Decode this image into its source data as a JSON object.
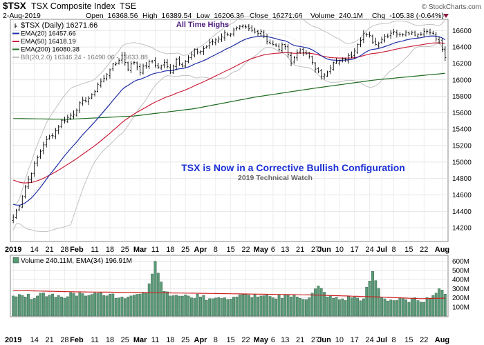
{
  "header": {
    "symbol": "$TSX",
    "name": "TSX Composite Index",
    "exchange": "TSE",
    "brand": "© StockCharts.com",
    "date": "2-Aug-2019",
    "quote": {
      "open_label": "Open",
      "open": "16368.56",
      "high_label": "High",
      "high": "16389.54",
      "low_label": "Low",
      "low": "16206.36",
      "close_label": "Close",
      "close": "16271.66",
      "volume_label": "Volume",
      "volume": "240.1M",
      "chg_label": "Chg",
      "chg": "-105.38 (-0.64%)"
    }
  },
  "colors": {
    "price": "#000000",
    "ema20": "#1f2ea6",
    "ema50": "#cc1f3a",
    "ema200": "#1e6b1e",
    "bb": "#c0c0c0",
    "volume_bar": "#5a9a78",
    "volume_ema": "#cc1f1f",
    "annotation": "#1a2fd6",
    "ath": "#4b1a7a"
  },
  "legend": [
    {
      "key": "price",
      "label": "$TSX (Daily) 16271.66",
      "style": "price"
    },
    {
      "key": "ema20",
      "label": "EMA(20) 16457.66",
      "style": "line"
    },
    {
      "key": "ema50",
      "label": "EMA(50) 16418.19",
      "style": "line"
    },
    {
      "key": "ema200",
      "label": "EMA(200) 16080.38",
      "style": "line"
    },
    {
      "key": "bb",
      "label": "BB(20,2.0) 16346.24 - 16490.06 - 16633.88",
      "style": "line"
    }
  ],
  "annotations": {
    "ath": "All Time Highs",
    "title": "TSX is Now in a Corrective Bullish Configuration",
    "subtitle": "2019 Technical Watch"
  },
  "volume_legend": "Volume 240.11M, EMA(34) 196.91M",
  "chart_data": {
    "type": "line",
    "x_labels": [
      {
        "i": 0,
        "t": "2019"
      },
      {
        "i": 7,
        "t": "14"
      },
      {
        "i": 12,
        "t": "21"
      },
      {
        "i": 17,
        "t": "28"
      },
      {
        "i": 21,
        "t": "Feb"
      },
      {
        "i": 27,
        "t": "11"
      },
      {
        "i": 32,
        "t": "18"
      },
      {
        "i": 37,
        "t": "25"
      },
      {
        "i": 42,
        "t": "Mar"
      },
      {
        "i": 47,
        "t": "11"
      },
      {
        "i": 52,
        "t": "18"
      },
      {
        "i": 57,
        "t": "25"
      },
      {
        "i": 62,
        "t": "Apr"
      },
      {
        "i": 67,
        "t": "8"
      },
      {
        "i": 72,
        "t": "15"
      },
      {
        "i": 77,
        "t": "22"
      },
      {
        "i": 82,
        "t": "May"
      },
      {
        "i": 86,
        "t": "6"
      },
      {
        "i": 90,
        "t": "13"
      },
      {
        "i": 95,
        "t": "21"
      },
      {
        "i": 100,
        "t": "27"
      },
      {
        "i": 103,
        "t": "Jun"
      },
      {
        "i": 108,
        "t": "10"
      },
      {
        "i": 113,
        "t": "17"
      },
      {
        "i": 118,
        "t": "24"
      },
      {
        "i": 122,
        "t": "Jul"
      },
      {
        "i": 126,
        "t": "8"
      },
      {
        "i": 131,
        "t": "15"
      },
      {
        "i": 136,
        "t": "22"
      },
      {
        "i": 142,
        "t": "Aug"
      }
    ],
    "price_axis": {
      "min": 14050,
      "max": 16720,
      "ticks": [
        14200,
        14400,
        14600,
        14800,
        15000,
        15200,
        15400,
        15600,
        15800,
        16000,
        16200,
        16400,
        16600
      ]
    },
    "volume_axis": {
      "min": 0,
      "max": 650,
      "unit": "M",
      "ticks": [
        100,
        200,
        300,
        400,
        500,
        600
      ],
      "tick_labels": [
        "100M",
        "200M",
        "300M",
        "400M",
        "500M",
        "600M"
      ]
    },
    "price_anchors": [
      [
        0,
        14330
      ],
      [
        2,
        14480
      ],
      [
        4,
        14700
      ],
      [
        6,
        14880
      ],
      [
        8,
        15050
      ],
      [
        10,
        15220
      ],
      [
        12,
        15300
      ],
      [
        14,
        15380
      ],
      [
        16,
        15500
      ],
      [
        18,
        15540
      ],
      [
        20,
        15600
      ],
      [
        22,
        15700
      ],
      [
        24,
        15760
      ],
      [
        26,
        15800
      ],
      [
        28,
        15950
      ],
      [
        30,
        16010
      ],
      [
        32,
        16140
      ],
      [
        34,
        16200
      ],
      [
        36,
        16300
      ],
      [
        38,
        16140
      ],
      [
        40,
        16220
      ],
      [
        42,
        16110
      ],
      [
        44,
        16180
      ],
      [
        46,
        16230
      ],
      [
        48,
        16150
      ],
      [
        50,
        16200
      ],
      [
        52,
        16110
      ],
      [
        54,
        16250
      ],
      [
        56,
        16190
      ],
      [
        58,
        16260
      ],
      [
        60,
        16350
      ],
      [
        62,
        16350
      ],
      [
        64,
        16410
      ],
      [
        66,
        16470
      ],
      [
        68,
        16510
      ],
      [
        70,
        16560
      ],
      [
        72,
        16570
      ],
      [
        74,
        16620
      ],
      [
        76,
        16640
      ],
      [
        78,
        16610
      ],
      [
        80,
        16580
      ],
      [
        82,
        16600
      ],
      [
        84,
        16480
      ],
      [
        86,
        16420
      ],
      [
        88,
        16380
      ],
      [
        90,
        16430
      ],
      [
        92,
        16200
      ],
      [
        94,
        16350
      ],
      [
        96,
        16330
      ],
      [
        98,
        16280
      ],
      [
        100,
        16150
      ],
      [
        102,
        16020
      ],
      [
        104,
        16120
      ],
      [
        106,
        16200
      ],
      [
        108,
        16220
      ],
      [
        110,
        16260
      ],
      [
        112,
        16300
      ],
      [
        114,
        16450
      ],
      [
        116,
        16560
      ],
      [
        118,
        16520
      ],
      [
        120,
        16430
      ],
      [
        122,
        16500
      ],
      [
        124,
        16550
      ],
      [
        126,
        16600
      ],
      [
        128,
        16540
      ],
      [
        130,
        16600
      ],
      [
        132,
        16570
      ],
      [
        134,
        16560
      ],
      [
        136,
        16590
      ],
      [
        138,
        16600
      ],
      [
        140,
        16500
      ],
      [
        141,
        16460
      ],
      [
        142,
        16380
      ],
      [
        143,
        16270
      ]
    ],
    "volume_anchors": [
      [
        0,
        220
      ],
      [
        4,
        210
      ],
      [
        8,
        220
      ],
      [
        12,
        230
      ],
      [
        16,
        210
      ],
      [
        20,
        250
      ],
      [
        24,
        220
      ],
      [
        28,
        250
      ],
      [
        32,
        240
      ],
      [
        36,
        210
      ],
      [
        40,
        230
      ],
      [
        44,
        250
      ],
      [
        47,
        600
      ],
      [
        50,
        270
      ],
      [
        54,
        230
      ],
      [
        58,
        220
      ],
      [
        62,
        210
      ],
      [
        66,
        190
      ],
      [
        70,
        200
      ],
      [
        74,
        210
      ],
      [
        78,
        230
      ],
      [
        82,
        220
      ],
      [
        86,
        200
      ],
      [
        90,
        230
      ],
      [
        94,
        210
      ],
      [
        98,
        200
      ],
      [
        101,
        330
      ],
      [
        104,
        210
      ],
      [
        108,
        180
      ],
      [
        112,
        200
      ],
      [
        116,
        190
      ],
      [
        119,
        490
      ],
      [
        122,
        200
      ],
      [
        126,
        170
      ],
      [
        130,
        180
      ],
      [
        134,
        170
      ],
      [
        138,
        190
      ],
      [
        141,
        300
      ],
      [
        143,
        240
      ]
    ],
    "volume_ema_anchors": [
      [
        0,
        280
      ],
      [
        20,
        265
      ],
      [
        40,
        258
      ],
      [
        60,
        250
      ],
      [
        80,
        240
      ],
      [
        100,
        230
      ],
      [
        120,
        210
      ],
      [
        135,
        190
      ],
      [
        143,
        197
      ]
    ],
    "ema200_anchors": [
      [
        0,
        15530
      ],
      [
        18,
        15520
      ],
      [
        40,
        15560
      ],
      [
        60,
        15650
      ],
      [
        80,
        15790
      ],
      [
        100,
        15900
      ],
      [
        120,
        16000
      ],
      [
        143,
        16080
      ]
    ]
  }
}
